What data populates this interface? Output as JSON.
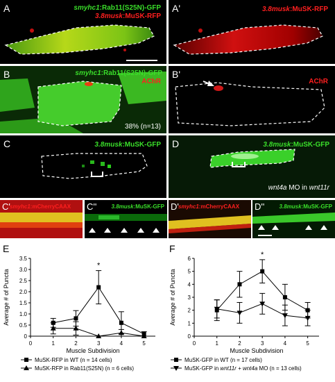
{
  "panels": {
    "A": {
      "letter": "A",
      "label_green_gene": "smyhc1",
      "label_green_rest": ":Rab11(S25N)-GFP",
      "label_red_gene": "3.8musk",
      "label_red_rest": ":MuSK-RFP"
    },
    "A2": {
      "letter": "A'",
      "label_red_gene": "3.8musk",
      "label_red_rest": ":MuSK-RFP"
    },
    "B": {
      "letter": "B",
      "label_green_gene": "smyhc1",
      "label_green_rest": ":Rab11(S25N)-GFP",
      "label_red": "AChR",
      "note": "38% (n=13)"
    },
    "B2": {
      "letter": "B'",
      "label_red": "AChR"
    },
    "C": {
      "letter": "C",
      "label_green_gene": "3.8musk",
      "label_green_rest": ":MuSK-GFP"
    },
    "D": {
      "letter": "D",
      "label_green_gene": "3.8musk",
      "label_green_rest": ":MuSK-GFP",
      "note_gene": "wnt4a",
      "note_mid": " MO in ",
      "note_gene2": "wnt11r"
    },
    "C1": {
      "letter": "C'",
      "label_gene": "smyhc1",
      "label_rest": ":mCherryCAAX"
    },
    "C2": {
      "letter": "C''",
      "label_gene": "3.8musk",
      "label_rest": ":MuSK-GFP"
    },
    "D1": {
      "letter": "D'",
      "label_gene": "smyhc1",
      "label_rest": ":mCherryCAAX"
    },
    "D2": {
      "letter": "D''",
      "label_gene": "3.8musk",
      "label_rest": ":MuSK-GFP"
    }
  },
  "chart_data": [
    {
      "panel": "E",
      "type": "line",
      "ylabel": "Average # of Puncta",
      "xlabel": "Muscle Subdivision",
      "xlim": [
        0,
        5.5
      ],
      "ylim": [
        0,
        3.5
      ],
      "yticks": [
        "0",
        "0.5",
        "1.0",
        "1.5",
        "2.0",
        "2.5",
        "3.0",
        "3.5"
      ],
      "xticks": [
        "0",
        "1",
        "2",
        "3",
        "4",
        "5"
      ],
      "annotation": "*",
      "series": [
        {
          "name": "MuSK-RFP in WT (n = 14 cells)",
          "marker": "square",
          "x": [
            1,
            2,
            3,
            4,
            5
          ],
          "y": [
            0.6,
            0.8,
            2.2,
            0.6,
            0.1
          ],
          "err": [
            0.2,
            0.35,
            0.75,
            0.5,
            0.1
          ]
        },
        {
          "name": "MuSK-RFP in Rab11(S25N) (n = 6 cells)",
          "marker": "triangle",
          "x": [
            1,
            2,
            3,
            4,
            5
          ],
          "y": [
            0.35,
            0.35,
            0.0,
            0.15,
            0.0
          ],
          "err": [
            0.25,
            0.3,
            0.0,
            0.15,
            0.0
          ]
        }
      ]
    },
    {
      "panel": "F",
      "type": "line",
      "ylabel": "Average # of Puncta",
      "xlabel": "Muscle Subdivision",
      "xlim": [
        0,
        5.5
      ],
      "ylim": [
        0,
        6
      ],
      "yticks": [
        "0",
        "1",
        "2",
        "3",
        "4",
        "5",
        "6"
      ],
      "xticks": [
        "0",
        "1",
        "2",
        "3",
        "4",
        "5"
      ],
      "annotation": "*",
      "series": [
        {
          "name": "MuSK-GFP in WT (n = 17 cells)",
          "marker": "square",
          "x": [
            1,
            2,
            3,
            4,
            5
          ],
          "y": [
            2.0,
            4.0,
            5.0,
            3.0,
            2.0
          ],
          "err": [
            0.8,
            1.0,
            0.9,
            1.0,
            0.6
          ]
        },
        {
          "name_prefix": "MuSK-GFP in ",
          "name_gene": "wnt11r + wnt4a",
          "name_suffix": " MO (n = 13 cells)",
          "marker": "triangle-down",
          "x": [
            1,
            2,
            3,
            4,
            5
          ],
          "y": [
            2.1,
            1.8,
            2.5,
            1.6,
            1.4
          ],
          "err": [
            0.7,
            0.8,
            0.8,
            0.8,
            0.6
          ]
        }
      ]
    }
  ],
  "colors": {
    "green": "#3adf2a",
    "red": "#ff1f1f"
  }
}
